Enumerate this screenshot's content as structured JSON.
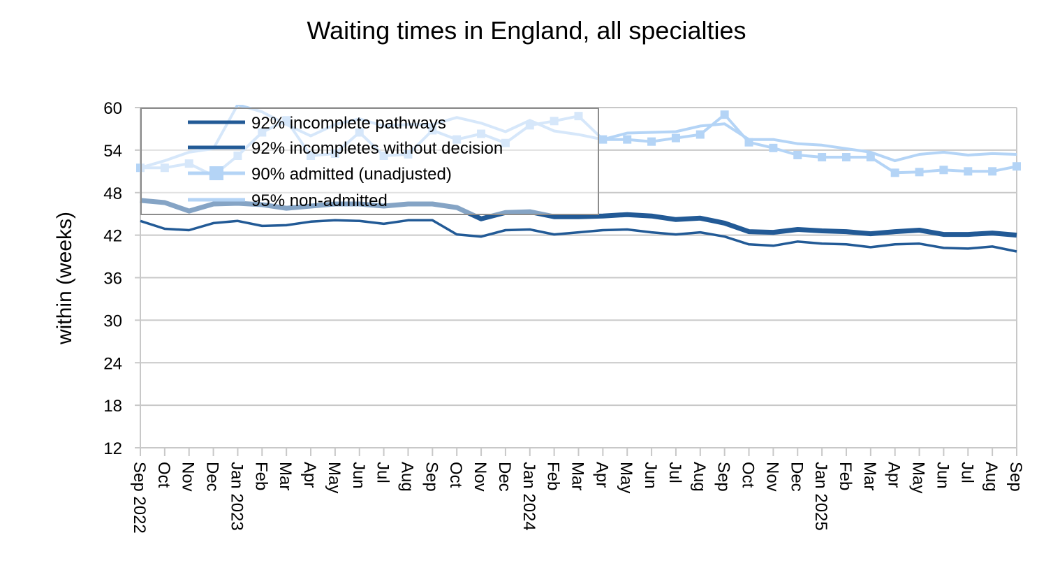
{
  "chart_data": {
    "type": "line",
    "title": "Waiting times in England, all specialties",
    "xlabel": "",
    "ylabel": "within  (weeks)",
    "ylim": [
      12,
      60
    ],
    "yticks": [
      12,
      18,
      24,
      30,
      36,
      42,
      48,
      54,
      60
    ],
    "grid": true,
    "legend_position": "top-left",
    "x": [
      "Sep 2022",
      "Oct",
      "Nov",
      "Dec",
      "Jan 2023",
      "Feb",
      "Mar",
      "Apr",
      "May",
      "Jun",
      "Jul",
      "Aug",
      "Sep",
      "Oct",
      "Nov",
      "Dec",
      "Jan 2024",
      "Feb",
      "Mar",
      "Apr",
      "May",
      "Jun",
      "Jul",
      "Aug",
      "Sep",
      "Oct",
      "Nov",
      "Dec",
      "Jan 2025",
      "Feb",
      "Mar",
      "Apr",
      "May",
      "Jun",
      "Jul",
      "Aug",
      "Sep"
    ],
    "series": [
      {
        "name": "92% incomplete pathways",
        "color": "#225a96",
        "style": "thick",
        "marker": "none",
        "values": [
          46.9,
          46.6,
          45.4,
          46.4,
          46.5,
          46.3,
          45.8,
          46.1,
          46.4,
          46.4,
          46.1,
          46.4,
          46.4,
          45.9,
          44.3,
          45.2,
          45.3,
          44.6,
          44.6,
          44.7,
          44.9,
          44.7,
          44.2,
          44.4,
          43.7,
          42.5,
          42.4,
          42.8,
          42.6,
          42.5,
          42.2,
          42.5,
          42.7,
          42.1,
          42.1,
          42.3,
          42.0
        ]
      },
      {
        "name": "92% incompletes without decision",
        "color": "#225a96",
        "style": "thin",
        "marker": "none",
        "values": [
          44.0,
          42.9,
          42.7,
          43.7,
          44.0,
          43.3,
          43.4,
          43.9,
          44.1,
          44.0,
          43.6,
          44.1,
          44.1,
          42.1,
          41.8,
          42.7,
          42.8,
          42.1,
          42.4,
          42.7,
          42.8,
          42.4,
          42.1,
          42.4,
          41.8,
          40.7,
          40.5,
          41.1,
          40.8,
          40.7,
          40.3,
          40.7,
          40.8,
          40.2,
          40.1,
          40.4,
          39.7
        ]
      },
      {
        "name": "90% admitted (unadjusted)",
        "color": "#b4d4f6",
        "style": "medium",
        "marker": "square",
        "values": [
          51.5,
          51.5,
          52.1,
          50.4,
          53.2,
          56.5,
          58.2,
          53.2,
          53.5,
          56.5,
          53.2,
          53.4,
          56.8,
          55.5,
          56.3,
          55.0,
          57.5,
          58.1,
          58.8,
          55.5,
          55.5,
          55.2,
          55.7,
          56.2,
          59.0,
          55.1,
          54.3,
          53.3,
          53.0,
          53.0,
          53.0,
          50.8,
          50.9,
          51.2,
          51.0,
          51.0,
          51.7
        ]
      },
      {
        "name": "95% non-admitted",
        "color": "#b4d4f6",
        "style": "medium",
        "marker": "none",
        "values": [
          51.5,
          52.5,
          53.7,
          54.2,
          60.4,
          59.4,
          57.6,
          56.0,
          57.6,
          58.4,
          57.4,
          57.6,
          57.6,
          58.6,
          57.8,
          56.6,
          58.2,
          56.7,
          56.2,
          55.5,
          56.4,
          56.5,
          56.6,
          57.4,
          57.7,
          55.5,
          55.5,
          54.9,
          54.7,
          54.2,
          53.7,
          52.5,
          53.4,
          53.7,
          53.3,
          53.5,
          53.4
        ]
      }
    ]
  }
}
